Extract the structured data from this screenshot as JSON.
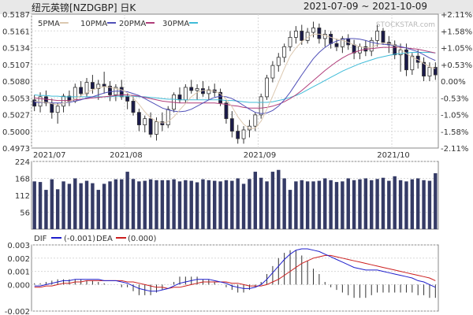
{
  "header": {
    "title": "纽元英镑[NZDGBP] 日K",
    "date_range": "2021-07-09 ~ 2021-10-09"
  },
  "watermark": "STOCKSTAR.com",
  "colors": {
    "up": "#333333",
    "down": "#333333",
    "up_fill": "#ffffff",
    "down_fill": "#1a1a4a",
    "ma5": "#dcc8b0",
    "ma10": "#5050b8",
    "ma20": "#b03d7a",
    "ma30": "#40bcd8",
    "volume": "#353b66",
    "dif": "#1e1ecc",
    "dea": "#cc1e1e",
    "macd_bar": "#333333",
    "grid": "#d8d8d8",
    "frame": "#888888",
    "header_bg": "#e8e8e8"
  },
  "chart_data": [
    {
      "type": "candlestick",
      "ylim": [
        0.4973,
        0.5187
      ],
      "left_ticks": [
        "0.5187",
        "0.5161",
        "0.5134",
        "0.5107",
        "0.5080",
        "0.5053",
        "0.5027",
        "0.5000",
        "0.4973"
      ],
      "right_ticks": [
        "+2.11%",
        "+1.58%",
        "+1.05%",
        "+0.53%",
        "0.00%",
        "-0.53%",
        "-1.05%",
        "-1.58%",
        "-2.11%"
      ],
      "x_labels": [
        "2021/07",
        "2021/08",
        "2021/09",
        "2021/10"
      ],
      "legend": [
        {
          "label": "5PMA",
          "color_key": "ma5"
        },
        {
          "label": "10PMA",
          "color_key": "ma10"
        },
        {
          "label": "20PMA",
          "color_key": "ma20"
        },
        {
          "label": "30PMA",
          "color_key": "ma30"
        }
      ],
      "ohlc": [
        [
          0.505,
          0.5058,
          0.5032,
          0.504
        ],
        [
          0.504,
          0.5062,
          0.503,
          0.5055
        ],
        [
          0.5055,
          0.5065,
          0.504,
          0.5045
        ],
        [
          0.5045,
          0.5052,
          0.502,
          0.503
        ],
        [
          0.503,
          0.5045,
          0.5012,
          0.504
        ],
        [
          0.504,
          0.506,
          0.503,
          0.5056
        ],
        [
          0.5056,
          0.5065,
          0.504,
          0.5048
        ],
        [
          0.5048,
          0.5076,
          0.5045,
          0.507
        ],
        [
          0.507,
          0.508,
          0.5055,
          0.506
        ],
        [
          0.506,
          0.5085,
          0.5055,
          0.5078
        ],
        [
          0.5078,
          0.509,
          0.506,
          0.5068
        ],
        [
          0.5068,
          0.5082,
          0.505,
          0.5075
        ],
        [
          0.5075,
          0.5095,
          0.506,
          0.5072
        ],
        [
          0.5072,
          0.508,
          0.5048,
          0.5058
        ],
        [
          0.5058,
          0.5075,
          0.5048,
          0.507
        ],
        [
          0.507,
          0.5082,
          0.505,
          0.5055
        ],
        [
          0.5055,
          0.506,
          0.5035,
          0.5048
        ],
        [
          0.5048,
          0.5055,
          0.5025,
          0.503
        ],
        [
          0.503,
          0.5036,
          0.5,
          0.501
        ],
        [
          0.501,
          0.5025,
          0.4998,
          0.502
        ],
        [
          0.502,
          0.503,
          0.499,
          0.4995
        ],
        [
          0.4995,
          0.5022,
          0.4985,
          0.5015
        ],
        [
          0.5015,
          0.503,
          0.5,
          0.501
        ],
        [
          0.501,
          0.504,
          0.5005,
          0.5035
        ],
        [
          0.5035,
          0.5062,
          0.503,
          0.5058
        ],
        [
          0.5058,
          0.507,
          0.5045,
          0.505
        ],
        [
          0.505,
          0.5075,
          0.5045,
          0.507
        ],
        [
          0.507,
          0.5082,
          0.506,
          0.5065
        ],
        [
          0.5065,
          0.5075,
          0.505,
          0.5068
        ],
        [
          0.5068,
          0.508,
          0.5055,
          0.506
        ],
        [
          0.506,
          0.5072,
          0.505,
          0.5066
        ],
        [
          0.5066,
          0.5076,
          0.5055,
          0.5062
        ],
        [
          0.5062,
          0.5068,
          0.504,
          0.5045
        ],
        [
          0.5045,
          0.505,
          0.5012,
          0.502
        ],
        [
          0.502,
          0.5032,
          0.499,
          0.5
        ],
        [
          0.5,
          0.501,
          0.498,
          0.4988
        ],
        [
          0.4988,
          0.5008,
          0.498,
          0.5002
        ],
        [
          0.5002,
          0.5018,
          0.499,
          0.5008
        ],
        [
          0.5008,
          0.503,
          0.5,
          0.5026
        ],
        [
          0.5026,
          0.506,
          0.502,
          0.5055
        ],
        [
          0.5055,
          0.509,
          0.505,
          0.5085
        ],
        [
          0.5085,
          0.5112,
          0.5078,
          0.5105
        ],
        [
          0.5105,
          0.5125,
          0.5095,
          0.5118
        ],
        [
          0.5118,
          0.514,
          0.511,
          0.5135
        ],
        [
          0.5135,
          0.516,
          0.5128,
          0.515
        ],
        [
          0.515,
          0.5168,
          0.514,
          0.516
        ],
        [
          0.516,
          0.517,
          0.5138,
          0.5145
        ],
        [
          0.5145,
          0.5165,
          0.514,
          0.5158
        ],
        [
          0.5158,
          0.5175,
          0.515,
          0.5165
        ],
        [
          0.5165,
          0.5172,
          0.514,
          0.5148
        ],
        [
          0.5148,
          0.5162,
          0.5135,
          0.5155
        ],
        [
          0.5155,
          0.516,
          0.5132,
          0.514
        ],
        [
          0.514,
          0.5148,
          0.5128,
          0.5135
        ],
        [
          0.5135,
          0.5152,
          0.5125,
          0.5148
        ],
        [
          0.5148,
          0.5155,
          0.513,
          0.5138
        ],
        [
          0.5138,
          0.5146,
          0.5115,
          0.5125
        ],
        [
          0.5125,
          0.514,
          0.5115,
          0.5135
        ],
        [
          0.5135,
          0.5145,
          0.512,
          0.5128
        ],
        [
          0.5128,
          0.515,
          0.512,
          0.5145
        ],
        [
          0.5145,
          0.517,
          0.5135,
          0.516
        ],
        [
          0.516,
          0.5165,
          0.5138,
          0.5142
        ],
        [
          0.5142,
          0.5152,
          0.5125,
          0.5138
        ],
        [
          0.5138,
          0.5145,
          0.5115,
          0.5122
        ],
        [
          0.5122,
          0.514,
          0.5095,
          0.513
        ],
        [
          0.513,
          0.514,
          0.5088,
          0.5098
        ],
        [
          0.5098,
          0.5125,
          0.509,
          0.512
        ],
        [
          0.512,
          0.513,
          0.51,
          0.511
        ],
        [
          0.511,
          0.5118,
          0.508,
          0.5088
        ],
        [
          0.5088,
          0.511,
          0.508,
          0.5102
        ],
        [
          0.5102,
          0.511,
          0.5082,
          0.509
        ]
      ],
      "ma5": [
        0.5048,
        0.5047,
        0.5046,
        0.5044,
        0.5042,
        0.5045,
        0.5047,
        0.5052,
        0.5057,
        0.5062,
        0.5066,
        0.5069,
        0.5071,
        0.507,
        0.5068,
        0.5066,
        0.5061,
        0.5053,
        0.5043,
        0.5031,
        0.5021,
        0.5016,
        0.5013,
        0.5015,
        0.5023,
        0.5034,
        0.5044,
        0.5055,
        0.5062,
        0.5065,
        0.5065,
        0.5064,
        0.506,
        0.5051,
        0.5039,
        0.5023,
        0.5011,
        0.5004,
        0.5005,
        0.5016,
        0.5035,
        0.5056,
        0.5078,
        0.51,
        0.512,
        0.5133,
        0.5143,
        0.515,
        0.5155,
        0.5155,
        0.5153,
        0.515,
        0.5147,
        0.5145,
        0.5142,
        0.5138,
        0.5135,
        0.5133,
        0.5134,
        0.5138,
        0.5141,
        0.514,
        0.5137,
        0.5132,
        0.5124,
        0.5118,
        0.5114,
        0.5108,
        0.5103,
        0.51
      ],
      "ma10": [
        0.5046,
        0.5046,
        0.5046,
        0.5045,
        0.5045,
        0.5045,
        0.5046,
        0.5048,
        0.505,
        0.5053,
        0.5055,
        0.5058,
        0.5061,
        0.5063,
        0.5064,
        0.5064,
        0.5063,
        0.506,
        0.5057,
        0.5052,
        0.5047,
        0.5042,
        0.5037,
        0.5034,
        0.5032,
        0.5031,
        0.5032,
        0.5035,
        0.504,
        0.5045,
        0.505,
        0.5054,
        0.5056,
        0.5055,
        0.5052,
        0.5047,
        0.5041,
        0.5035,
        0.503,
        0.5028,
        0.5029,
        0.5033,
        0.504,
        0.505,
        0.5062,
        0.5076,
        0.509,
        0.5103,
        0.5116,
        0.5126,
        0.5134,
        0.514,
        0.5144,
        0.5147,
        0.5148,
        0.5148,
        0.5147,
        0.5145,
        0.5142,
        0.514,
        0.5139,
        0.5138,
        0.5137,
        0.5135,
        0.5133,
        0.513,
        0.5127,
        0.5122,
        0.5117,
        0.5113
      ],
      "ma20": [
        0.5053,
        0.5052,
        0.5051,
        0.505,
        0.5049,
        0.5049,
        0.5049,
        0.505,
        0.5051,
        0.5052,
        0.5053,
        0.5054,
        0.5055,
        0.5056,
        0.5057,
        0.5058,
        0.5058,
        0.5057,
        0.5056,
        0.5054,
        0.5052,
        0.505,
        0.5048,
        0.5047,
        0.5046,
        0.5045,
        0.5045,
        0.5045,
        0.5045,
        0.5045,
        0.5045,
        0.5045,
        0.5044,
        0.5043,
        0.5041,
        0.504,
        0.5038,
        0.5037,
        0.5037,
        0.5037,
        0.5038,
        0.504,
        0.5043,
        0.5047,
        0.5052,
        0.5058,
        0.5065,
        0.5073,
        0.5081,
        0.5089,
        0.5097,
        0.5104,
        0.5111,
        0.5117,
        0.5122,
        0.5126,
        0.5129,
        0.5131,
        0.5132,
        0.5133,
        0.5134,
        0.5134,
        0.5134,
        0.5134,
        0.5133,
        0.5132,
        0.5131,
        0.5129,
        0.5127,
        0.5125
      ],
      "ma30": [
        0.5058,
        0.5057,
        0.5057,
        0.5056,
        0.5056,
        0.5055,
        0.5055,
        0.5055,
        0.5055,
        0.5055,
        0.5055,
        0.5055,
        0.5055,
        0.5055,
        0.5056,
        0.5056,
        0.5056,
        0.5056,
        0.5055,
        0.5055,
        0.5054,
        0.5053,
        0.5052,
        0.5051,
        0.5051,
        0.505,
        0.505,
        0.505,
        0.505,
        0.505,
        0.505,
        0.505,
        0.505,
        0.5049,
        0.5049,
        0.5048,
        0.5047,
        0.5046,
        0.5046,
        0.5046,
        0.5046,
        0.5047,
        0.5049,
        0.5051,
        0.5054,
        0.5057,
        0.5061,
        0.5066,
        0.5071,
        0.5076,
        0.5081,
        0.5086,
        0.5091,
        0.5096,
        0.51,
        0.5104,
        0.5108,
        0.5111,
        0.5114,
        0.5117,
        0.5119,
        0.5121,
        0.5123,
        0.5124,
        0.5125,
        0.5126,
        0.5126,
        0.5126,
        0.5126,
        0.5125
      ]
    },
    {
      "type": "bar",
      "ylim": [
        0,
        224
      ],
      "y_ticks": [
        "224",
        "168",
        "112",
        "56"
      ],
      "values": [
        158,
        156,
        130,
        165,
        132,
        158,
        150,
        168,
        152,
        160,
        152,
        130,
        150,
        158,
        165,
        165,
        190,
        166,
        158,
        160,
        165,
        162,
        162,
        162,
        165,
        158,
        162,
        160,
        155,
        165,
        162,
        160,
        158,
        162,
        160,
        168,
        150,
        166,
        190,
        170,
        158,
        190,
        196,
        168,
        130,
        158,
        162,
        158,
        158,
        160,
        168,
        162,
        156,
        158,
        168,
        162,
        165,
        168,
        162,
        166,
        170,
        160,
        175,
        162,
        158,
        165,
        168,
        162,
        160,
        185
      ]
    },
    {
      "type": "line",
      "ylim": [
        -0.002,
        0.003
      ],
      "y_ticks": [
        "0.003",
        "0.002",
        "0.001",
        "0.000",
        "-0.002"
      ],
      "legend_label": "DIF",
      "legend_values": [
        "(-0.001)",
        "DEA",
        "(0.000)"
      ],
      "dif": [
        -0.0001,
        -0.0001,
        0.0,
        0.0001,
        0.0002,
        0.0003,
        0.0003,
        0.0004,
        0.0004,
        0.0004,
        0.0004,
        0.0004,
        0.0003,
        0.0003,
        0.0003,
        0.0002,
        0.0001,
        -0.0001,
        -0.0003,
        -0.0004,
        -0.0005,
        -0.0005,
        -0.0004,
        -0.0003,
        -0.0001,
        0.0001,
        0.0002,
        0.0003,
        0.0004,
        0.0004,
        0.0004,
        0.0003,
        0.0002,
        0.0001,
        -0.0001,
        -0.0002,
        -0.0003,
        -0.0003,
        -0.0002,
        0.0,
        0.0004,
        0.0009,
        0.0014,
        0.0019,
        0.0023,
        0.0026,
        0.0027,
        0.0027,
        0.0026,
        0.0025,
        0.0023,
        0.0021,
        0.0019,
        0.0017,
        0.0015,
        0.0013,
        0.0012,
        0.0011,
        0.0011,
        0.0011,
        0.001,
        0.0009,
        0.0008,
        0.0007,
        0.0006,
        0.0005,
        0.0003,
        0.0002,
        0.0,
        -0.0002
      ],
      "dea": [
        -0.0002,
        -0.0002,
        -0.0001,
        -0.0001,
        0.0,
        0.0001,
        0.0001,
        0.0002,
        0.0002,
        0.0003,
        0.0003,
        0.0003,
        0.0003,
        0.0003,
        0.0003,
        0.0003,
        0.0002,
        0.0002,
        0.0001,
        0.0,
        -0.0001,
        -0.0002,
        -0.0002,
        -0.0003,
        -0.0002,
        -0.0002,
        -0.0001,
        0.0,
        0.0001,
        0.0002,
        0.0002,
        0.0002,
        0.0002,
        0.0002,
        0.0001,
        0.0001,
        0.0,
        -0.0001,
        -0.0001,
        -0.0001,
        0.0,
        0.0002,
        0.0004,
        0.0007,
        0.001,
        0.0013,
        0.0016,
        0.0018,
        0.002,
        0.0021,
        0.0022,
        0.0022,
        0.0021,
        0.002,
        0.0019,
        0.0018,
        0.0017,
        0.0016,
        0.0015,
        0.0014,
        0.0013,
        0.0012,
        0.0011,
        0.001,
        0.0009,
        0.0008,
        0.0007,
        0.0006,
        0.0005,
        0.0003
      ],
      "macd": [
        0.0001,
        0.0001,
        0.0002,
        0.0003,
        0.0004,
        0.0004,
        0.0004,
        0.0004,
        0.0004,
        0.0003,
        0.0003,
        0.0002,
        0.0001,
        0.0,
        0.0,
        -0.0002,
        -0.0002,
        -0.0005,
        -0.0008,
        -0.0008,
        -0.0008,
        -0.0006,
        -0.0004,
        0.0,
        0.0002,
        0.0006,
        0.0006,
        0.0006,
        0.0006,
        0.0004,
        0.0004,
        0.0002,
        0.0,
        -0.0002,
        -0.0004,
        -0.0006,
        -0.0006,
        -0.0004,
        -0.0002,
        0.0002,
        0.0008,
        0.0014,
        0.002,
        0.0024,
        0.0026,
        0.0026,
        0.0022,
        0.0018,
        0.0012,
        0.0008,
        0.0002,
        -0.0002,
        -0.0004,
        -0.0006,
        -0.0008,
        -0.001,
        -0.001,
        -0.001,
        -0.0008,
        -0.0006,
        -0.0006,
        -0.0006,
        -0.0006,
        -0.0006,
        -0.0006,
        -0.0006,
        -0.0008,
        -0.0008,
        -0.001,
        -0.001
      ]
    }
  ]
}
